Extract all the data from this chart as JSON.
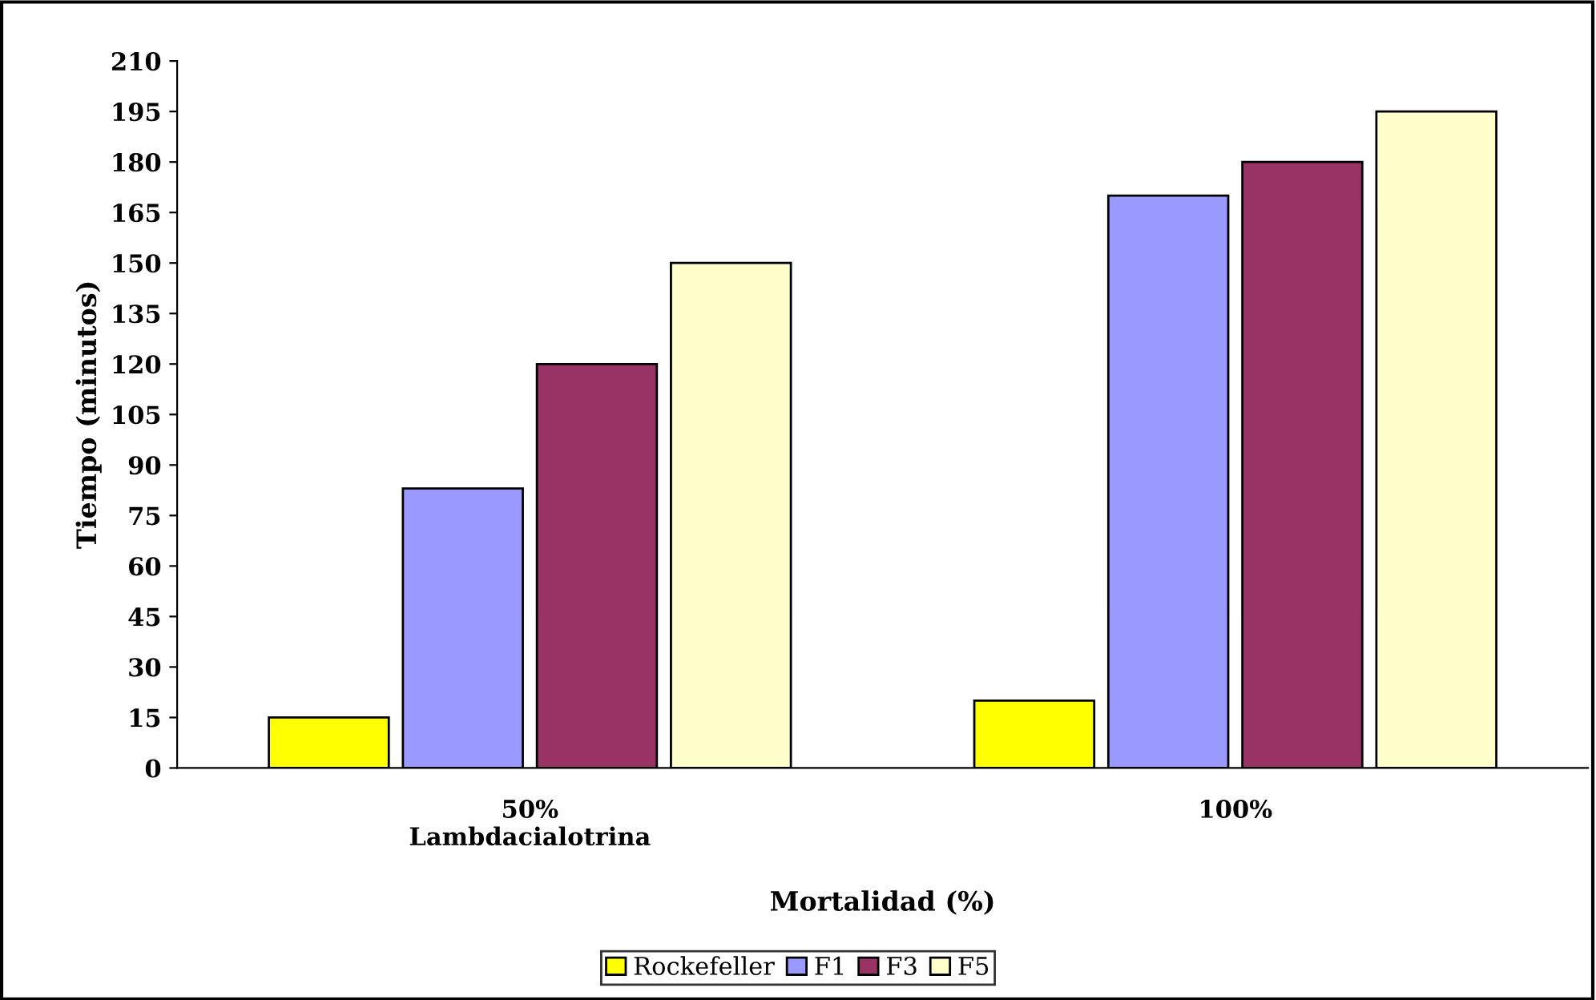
{
  "chart_data": {
    "type": "bar",
    "xlabel": "Mortalidad (%)",
    "ylabel": "Tiempo (minutos)",
    "categories": [
      "50%\nLambdacialotrina",
      "100%"
    ],
    "series": [
      {
        "name": "Rockefeller",
        "color": "#ffff00",
        "values": [
          15,
          20
        ]
      },
      {
        "name": "F1",
        "color": "#9999ff",
        "values": [
          83,
          170
        ]
      },
      {
        "name": "F3",
        "color": "#993366",
        "values": [
          120,
          180
        ]
      },
      {
        "name": "F5",
        "color": "#ffffcc",
        "values": [
          150,
          195
        ]
      }
    ],
    "ylim": [
      0,
      210
    ],
    "yticks": [
      0,
      15,
      30,
      45,
      60,
      75,
      90,
      105,
      120,
      135,
      150,
      165,
      180,
      195,
      210
    ],
    "grid": false,
    "legend": "bottom"
  }
}
